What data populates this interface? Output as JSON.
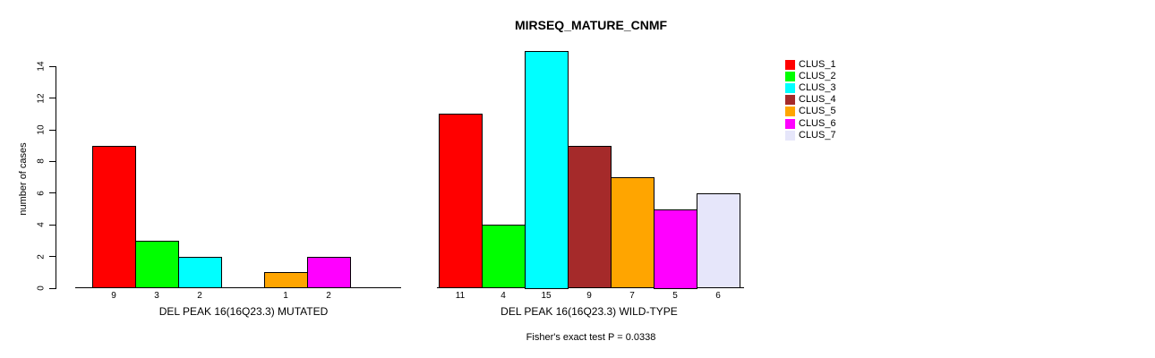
{
  "chart_data": {
    "type": "bar",
    "title": "MIRSEQ_MATURE_CNMF",
    "ylabel": "number of cases",
    "xlabel": "",
    "ylim": [
      0,
      14
    ],
    "yticks": [
      0,
      2,
      4,
      6,
      8,
      10,
      12,
      14
    ],
    "grid": false,
    "legend_position": "right",
    "categories": [
      "CLUS_1",
      "CLUS_2",
      "CLUS_3",
      "CLUS_4",
      "CLUS_5",
      "CLUS_6",
      "CLUS_7"
    ],
    "series": [
      {
        "name": "DEL PEAK 16(16Q23.3) MUTATED",
        "values": [
          9,
          3,
          2,
          0,
          1,
          2,
          0
        ]
      },
      {
        "name": "DEL PEAK 16(16Q23.3) WILD-TYPE",
        "values": [
          11,
          4,
          15,
          9,
          7,
          5,
          6
        ]
      }
    ],
    "bar_labels": [
      [
        "9",
        "3",
        "2",
        "",
        "1",
        "2",
        ""
      ],
      [
        "11",
        "4",
        "15",
        "9",
        "7",
        "5",
        "6"
      ]
    ],
    "annotation": "Fisher's exact test P = 0.0338"
  },
  "legend": {
    "items": [
      {
        "label": "CLUS_1",
        "color": "#FF0000"
      },
      {
        "label": "CLUS_2",
        "color": "#00FF00"
      },
      {
        "label": "CLUS_3",
        "color": "#00FFFF"
      },
      {
        "label": "CLUS_4",
        "color": "#A52A2A"
      },
      {
        "label": "CLUS_5",
        "color": "#FFA500"
      },
      {
        "label": "CLUS_6",
        "color": "#FF00FF"
      },
      {
        "label": "CLUS_7",
        "color": "#E6E6FA"
      }
    ]
  },
  "colors": {
    "bar_border": "#000000",
    "axis": "#000000",
    "text": "#000000",
    "background": "#FFFFFF"
  }
}
